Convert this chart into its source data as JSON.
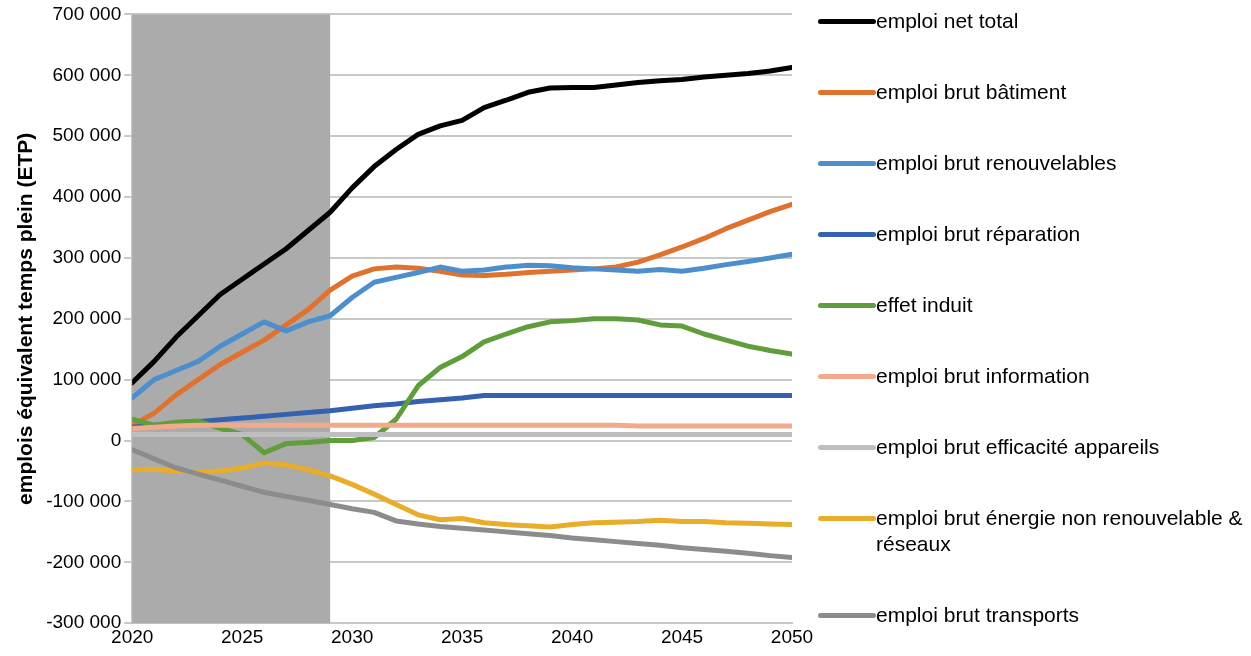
{
  "chart_data": {
    "type": "line",
    "ylabel": "emplois équivalent temps plein (ETP)",
    "x": [
      2020,
      2021,
      2022,
      2023,
      2024,
      2025,
      2026,
      2027,
      2028,
      2029,
      2030,
      2031,
      2032,
      2033,
      2034,
      2035,
      2036,
      2037,
      2038,
      2039,
      2040,
      2041,
      2042,
      2043,
      2044,
      2045,
      2046,
      2047,
      2048,
      2049,
      2050
    ],
    "xlim": [
      2020,
      2050
    ],
    "xticks": [
      2020,
      2025,
      2030,
      2035,
      2040,
      2045,
      2050
    ],
    "ylim": [
      -300000,
      700000
    ],
    "yticks": [
      {
        "value": -300000,
        "label": "-300 000"
      },
      {
        "value": -200000,
        "label": "-200 000"
      },
      {
        "value": -100000,
        "label": "-100 000"
      },
      {
        "value": 0,
        "label": "0"
      },
      {
        "value": 100000,
        "label": "100 000"
      },
      {
        "value": 200000,
        "label": "200 000"
      },
      {
        "value": 300000,
        "label": "300 000"
      },
      {
        "value": 400000,
        "label": "400 000"
      },
      {
        "value": 500000,
        "label": "500 000"
      },
      {
        "value": 600000,
        "label": "600 000"
      },
      {
        "value": 700000,
        "label": "700 000"
      }
    ],
    "grid": "y",
    "legend": "right",
    "marker": "none",
    "line_style": "solid",
    "bands": [
      {
        "axis": "x",
        "from": 2020,
        "to": 2029,
        "color": "#ababab"
      }
    ],
    "series": [
      {
        "name": "emploi net total",
        "color": "#000000",
        "values": [
          95000,
          130000,
          170000,
          205000,
          240000,
          265000,
          290000,
          315000,
          345000,
          375000,
          415000,
          450000,
          478000,
          503000,
          517000,
          526000,
          547000,
          559000,
          572000,
          579000,
          580000,
          580000,
          584000,
          588000,
          591000,
          593000,
          597000,
          600000,
          603000,
          607000,
          613000
        ]
      },
      {
        "name": "emploi brut bâtiment",
        "color": "#e07230",
        "values": [
          25000,
          45000,
          75000,
          100000,
          125000,
          145000,
          165000,
          190000,
          215000,
          247000,
          270000,
          282000,
          285000,
          283000,
          278000,
          272000,
          271000,
          273000,
          276000,
          278000,
          280000,
          282000,
          285000,
          293000,
          305000,
          318000,
          332000,
          348000,
          362000,
          376000,
          388000
        ]
      },
      {
        "name": "emploi brut renouvelables",
        "color": "#4d8fcc",
        "values": [
          70000,
          100000,
          115000,
          130000,
          155000,
          175000,
          195000,
          180000,
          195000,
          205000,
          235000,
          260000,
          268000,
          276000,
          285000,
          278000,
          280000,
          285000,
          288000,
          287000,
          284000,
          282000,
          280000,
          278000,
          281000,
          278000,
          283000,
          289000,
          294000,
          300000,
          306000
        ]
      },
      {
        "name": "emploi brut réparation",
        "color": "#3461b0",
        "values": [
          22000,
          25000,
          28000,
          31000,
          34000,
          37000,
          40000,
          43000,
          46000,
          49000,
          53000,
          57000,
          60000,
          64000,
          67000,
          70000,
          74000,
          74000,
          74000,
          74000,
          74000,
          74000,
          74000,
          74000,
          74000,
          74000,
          74000,
          74000,
          74000,
          74000,
          74000
        ]
      },
      {
        "name": "effet induit",
        "color": "#5f9e3a",
        "values": [
          35000,
          25000,
          30000,
          32000,
          20000,
          10000,
          -20000,
          -5000,
          -3000,
          0,
          0,
          5000,
          35000,
          90000,
          120000,
          138000,
          162000,
          175000,
          187000,
          195000,
          197000,
          200000,
          200000,
          198000,
          190000,
          188000,
          175000,
          165000,
          155000,
          148000,
          142000
        ]
      },
      {
        "name": "emploi brut information",
        "color": "#f2a98c",
        "values": [
          20000,
          22000,
          24000,
          25000,
          25000,
          25000,
          25000,
          25000,
          25000,
          25000,
          25000,
          25000,
          25000,
          25000,
          25000,
          25000,
          25000,
          25000,
          25000,
          25000,
          25000,
          25000,
          25000,
          24000,
          24000,
          24000,
          24000,
          24000,
          24000,
          24000,
          24000
        ]
      },
      {
        "name": "emploi brut efficacité appareils",
        "color": "#bfbfbf",
        "values": [
          10000,
          10000,
          10000,
          10000,
          10000,
          10000,
          10000,
          10000,
          10000,
          10000,
          10000,
          10000,
          10000,
          10000,
          10000,
          10000,
          10000,
          10000,
          10000,
          10000,
          10000,
          10000,
          10000,
          10000,
          10000,
          10000,
          10000,
          10000,
          10000,
          10000,
          10000
        ]
      },
      {
        "name": "emploi brut énergie non renouvelable & réseaux",
        "color": "#e8ad2a",
        "values": [
          -48000,
          -47000,
          -50000,
          -52000,
          -50000,
          -45000,
          -37000,
          -40000,
          -48000,
          -58000,
          -72000,
          -88000,
          -105000,
          -122000,
          -130000,
          -128000,
          -135000,
          -138000,
          -140000,
          -142000,
          -138000,
          -135000,
          -134000,
          -133000,
          -131000,
          -133000,
          -133000,
          -135000,
          -136000,
          -137000,
          -138000
        ]
      },
      {
        "name": "emploi brut transports",
        "color": "#8c8c8c",
        "values": [
          -15000,
          -30000,
          -45000,
          -55000,
          -65000,
          -75000,
          -85000,
          -92000,
          -98000,
          -105000,
          -112000,
          -118000,
          -132000,
          -137000,
          -141000,
          -144000,
          -147000,
          -150000,
          -153000,
          -156000,
          -160000,
          -163000,
          -166000,
          -169000,
          -172000,
          -176000,
          -179000,
          -182000,
          -185000,
          -189000,
          -192000
        ]
      }
    ]
  }
}
